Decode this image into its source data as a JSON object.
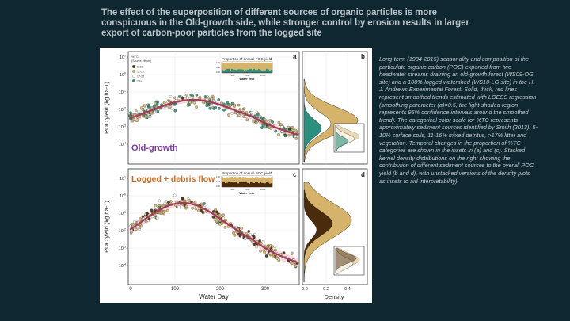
{
  "slide": {
    "title": "The effect of the superposition of different sources of organic particles is more conspicuous in the Old-growth side, while stronger control by erosion results in larger export of carbon-poor particles from the logged site",
    "caption": "Long-term (1984-2015) seasonality and composition of the particulate organic carbon (POC) exported  from two headwater streams draining an old-growth forest (WS09-OG site) and a 100%-logged watershed (WS10-LG site) in the H. J. Andrews Experimental Forest. Solid, thick, red lines represent smoothed trends estimated with LOESS regression (smoothing parameter (α)=0.5, the light-shaded region represents 95% confidence intervals around the smoothed trend). The categorical color scale for %TC represents approximately sediment sources identified by Smith (2013): 5-10% surface soils, 11-16% mixed detritus, >17% litter and vegetation. Temporal changes in the proportion of %TC categories are shown in the insets in (a) and (c).  Stacked kernel density distributions on the right showing the contribution of different sediment sources to the overall POC yield (b and d), with unstacked versions of the density plots as insets to aid interpretability).",
    "colors": {
      "background": "#0f2731",
      "title": "#b9c2c6",
      "caption": "#c3c9cb"
    }
  },
  "figure": {
    "legend_title": "%TC",
    "legend_subtitle": "(Source effects)",
    "legend_items": [
      {
        "label": "0-10",
        "color": "#4a2c0c"
      },
      {
        "label": "11-16",
        "color": "#d6b36a"
      },
      {
        "label": "17-22",
        "color": "#ffffff"
      },
      {
        "label": "23+",
        "color": "#2a8f7c"
      }
    ],
    "panel_labels": {
      "a": "a",
      "b": "b",
      "c": "c",
      "d": "d"
    },
    "x_axis_title": "Water Day",
    "y_axis_title": "POC yield (kg ha-1)",
    "density_axis_title": "Density",
    "x_ticks": [
      "0",
      "100",
      "200",
      "300"
    ],
    "y_ticks": [
      "10^1",
      "10^0",
      "10^-1",
      "10^-2",
      "10^-3",
      "10^-4"
    ],
    "density_ticks": [
      "0.0",
      "0.2",
      "0.4"
    ],
    "inset": {
      "title": "Proportion of annual POC yield",
      "x_label": "Water year",
      "x_ticks": [
        "1990",
        "2000",
        "2010"
      ],
      "y_ticks": [
        "1.00",
        "0.75",
        "0.50",
        "0.25",
        "0.00"
      ]
    },
    "panel_top_label": "Old-growth",
    "panel_bottom_label": "Logged + debris flow",
    "colors": {
      "og_label": "#7a3aa3",
      "lg_label": "#cf6a1e",
      "trend": "#a43b57",
      "ci": "#e8c0c8",
      "dark": "#4a2c0c",
      "tan": "#d6b36a",
      "white": "#ffffff",
      "teal": "#2a8f7c"
    }
  }
}
